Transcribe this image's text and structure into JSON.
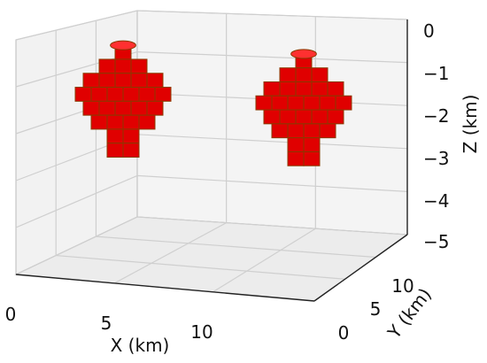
{
  "chart_data": {
    "type": "voxel-3d",
    "xlabel": "X (km)",
    "ylabel": "Y (km)",
    "zlabel": "Z (km)",
    "x_ticks": [
      "0",
      "5",
      "10"
    ],
    "y_ticks": [
      "0",
      "5",
      "10"
    ],
    "z_ticks": [
      "0",
      "−1",
      "−2",
      "−3",
      "−4",
      "−5"
    ],
    "xlim": [
      0,
      15
    ],
    "ylim": [
      0,
      15
    ],
    "zlim": [
      -5,
      0
    ],
    "voxel_color": "#e00000",
    "voxel_edge_color": "#8a3a00",
    "bodies": [
      {
        "center_x_km": 3.5,
        "center_y_km": 9,
        "top_z_km": -0.6,
        "bottom_z_km": -3.2
      },
      {
        "center_x_km": 12,
        "center_y_km": 9,
        "top_z_km": -0.8,
        "bottom_z_km": -3.4
      }
    ]
  }
}
